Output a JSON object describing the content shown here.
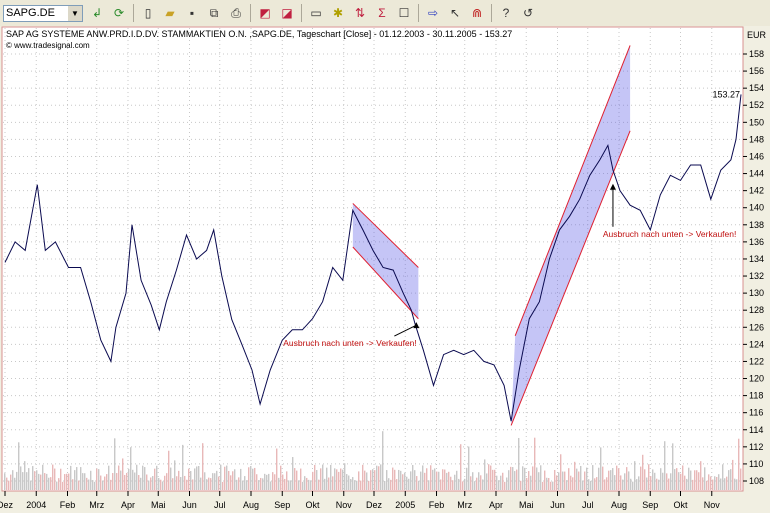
{
  "toolbar": {
    "symbol": "SAPG.DE",
    "icons": [
      "apply-icon",
      "refresh-icon",
      "new-icon",
      "open-icon",
      "save-icon",
      "copy-icon",
      "print-icon",
      "chart-back-icon",
      "chart-forward-icon",
      "window-icon",
      "indicator-icon",
      "strategy-icon",
      "sigma-icon",
      "properties-icon",
      "arrow-right-icon",
      "cursor-icon",
      "magnet-icon",
      "help-icon",
      "undo-icon"
    ]
  },
  "chart_data": {
    "type": "line",
    "title": "SAP AG SYSTEME ANW.PRD.I.D.DV. STAMMAKTIEN O.N. ,SAPG.DE, Tageschart [Close] - 01.12.2003 - 30.11.2005 - 153.27",
    "copyright": "© www.tradesignal.com",
    "unit": "EUR",
    "last_value": "153.27",
    "ylim": [
      106.8,
      161.2
    ],
    "xlim": [
      "2003-12-01",
      "2005-11-30"
    ],
    "y_ticks": [
      108,
      110,
      112,
      114,
      116,
      118,
      120,
      122,
      124,
      126,
      128,
      130,
      132,
      134,
      136,
      138,
      140,
      142,
      144,
      146,
      148,
      150,
      152,
      154,
      156,
      158
    ],
    "x_ticks": [
      [
        "2003-12-01",
        "Dez"
      ],
      [
        "2004-01-01",
        "2004"
      ],
      [
        "2004-02-01",
        "Feb"
      ],
      [
        "2004-03-01",
        "Mrz"
      ],
      [
        "2004-04-01",
        "Apr"
      ],
      [
        "2004-05-01",
        "Mai"
      ],
      [
        "2004-06-01",
        "Jun"
      ],
      [
        "2004-07-01",
        "Jul"
      ],
      [
        "2004-08-01",
        "Aug"
      ],
      [
        "2004-09-01",
        "Sep"
      ],
      [
        "2004-10-01",
        "Okt"
      ],
      [
        "2004-11-01",
        "Nov"
      ],
      [
        "2004-12-01",
        "Dez"
      ],
      [
        "2005-01-01",
        "2005"
      ],
      [
        "2005-02-01",
        "Feb"
      ],
      [
        "2005-03-01",
        "Mrz"
      ],
      [
        "2005-04-01",
        "Apr"
      ],
      [
        "2005-05-01",
        "Mai"
      ],
      [
        "2005-06-01",
        "Jun"
      ],
      [
        "2005-07-01",
        "Jul"
      ],
      [
        "2005-08-01",
        "Aug"
      ],
      [
        "2005-09-01",
        "Sep"
      ],
      [
        "2005-10-01",
        "Okt"
      ],
      [
        "2005-11-01",
        "Nov"
      ]
    ],
    "grid": true,
    "series_color": "#0a0a50",
    "x": [
      "2003-12-01",
      "2003-12-11",
      "2003-12-21",
      "2004-01-02",
      "2004-01-10",
      "2004-01-20",
      "2004-02-02",
      "2004-02-14",
      "2004-02-24",
      "2004-03-05",
      "2004-03-15",
      "2004-03-20",
      "2004-03-30",
      "2004-04-05",
      "2004-04-14",
      "2004-04-24",
      "2004-05-02",
      "2004-05-09",
      "2004-05-19",
      "2004-05-29",
      "2004-06-08",
      "2004-06-18",
      "2004-06-25",
      "2004-07-03",
      "2004-07-13",
      "2004-07-23",
      "2004-08-02",
      "2004-08-10",
      "2004-08-20",
      "2004-09-01",
      "2004-09-11",
      "2004-09-21",
      "2004-10-01",
      "2004-10-11",
      "2004-10-21",
      "2004-10-31",
      "2004-11-10",
      "2004-11-20",
      "2004-11-30",
      "2004-12-10",
      "2004-12-20",
      "2004-12-30",
      "2005-01-07",
      "2005-01-11",
      "2005-01-19",
      "2005-01-29",
      "2005-02-08",
      "2005-02-18",
      "2005-02-28",
      "2005-03-10",
      "2005-03-20",
      "2005-03-30",
      "2005-04-09",
      "2005-04-16",
      "2005-04-24",
      "2005-05-04",
      "2005-05-14",
      "2005-05-24",
      "2005-06-03",
      "2005-06-13",
      "2005-06-23",
      "2005-07-03",
      "2005-07-13",
      "2005-07-21",
      "2005-07-26",
      "2005-08-02",
      "2005-08-12",
      "2005-08-22",
      "2005-09-01",
      "2005-09-11",
      "2005-09-21",
      "2005-10-01",
      "2005-10-11",
      "2005-10-21",
      "2005-10-31",
      "2005-11-10",
      "2005-11-20",
      "2005-11-25",
      "2005-11-30"
    ],
    "values": [
      133.6,
      136,
      135,
      142.7,
      135,
      136,
      133,
      133,
      129,
      124.5,
      122,
      126,
      130,
      138,
      131.5,
      128.6,
      125.7,
      129,
      132.7,
      136.8,
      134,
      135,
      137.4,
      132,
      126.9,
      124,
      121,
      117,
      121,
      124.5,
      125.7,
      125.7,
      127,
      129,
      133,
      131.5,
      139.7,
      137.4,
      135,
      133,
      132.7,
      130,
      128,
      126.3,
      123.3,
      119.2,
      122.8,
      123.3,
      122.8,
      123.3,
      122,
      121.6,
      119.2,
      115,
      121,
      127,
      129,
      134,
      137.4,
      139,
      141,
      143.8,
      145.6,
      147.3,
      144.4,
      142,
      140.3,
      139.7,
      137.4,
      141.5,
      143.8,
      143.2,
      145,
      145,
      141,
      144.4,
      145.6,
      148,
      153.27
    ],
    "channels": [
      {
        "upper": [
          [
            "2004-11-10",
            140.5
          ],
          [
            "2005-01-14",
            133
          ]
        ],
        "lower": [
          [
            "2004-11-10",
            135.4
          ],
          [
            "2005-01-14",
            127
          ]
        ]
      },
      {
        "upper": [
          [
            "2005-04-20",
            125
          ],
          [
            "2005-08-12",
            159
          ]
        ],
        "lower": [
          [
            "2005-04-16",
            114.5
          ],
          [
            "2005-08-12",
            149
          ]
        ]
      }
    ],
    "annotations": [
      {
        "text": "Ausbruch nach unten -> Verkaufen!",
        "at": [
          "2004-09-02",
          123.8
        ],
        "arrow_to": [
          "2005-01-12",
          126.6
        ]
      },
      {
        "text": "Ausbruch nach unten -> Verkaufen!",
        "at": [
          "2005-07-16",
          136.6
        ],
        "arrow_to": [
          "2005-07-26",
          142.8
        ]
      }
    ],
    "volume_shown": true
  }
}
